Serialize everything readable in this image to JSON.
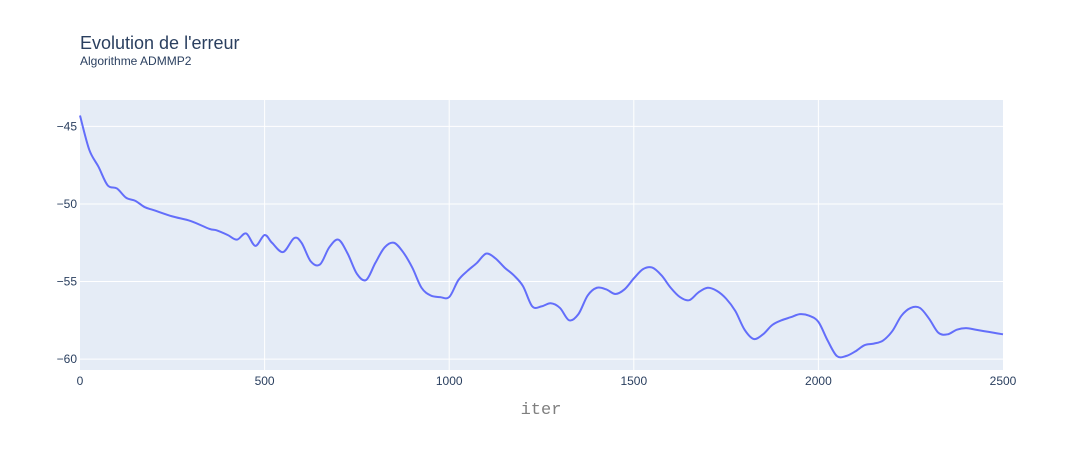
{
  "chart_data": {
    "type": "line",
    "title": "Evolution de l'erreur",
    "subtitle": "Algorithme ADMMP2",
    "xlabel": "iter",
    "ylabel": "",
    "xlim": [
      0,
      2500
    ],
    "ylim": [
      -60.7,
      -43.3
    ],
    "x_ticks": [
      0,
      500,
      1000,
      1500,
      2000,
      2500
    ],
    "x_tick_labels": [
      "0",
      "500",
      "1000",
      "1500",
      "2000",
      "2500"
    ],
    "y_ticks": [
      -45,
      -50,
      -55,
      -60
    ],
    "y_tick_labels": [
      "−45",
      "−50",
      "−55",
      "−60"
    ],
    "grid": true,
    "colors": {
      "line": "#636efa",
      "plot_bg": "#e5ecf6",
      "grid": "#ffffff",
      "text": "#2a3f5f"
    },
    "series": [
      {
        "x": [
          0,
          25,
          50,
          75,
          100,
          125,
          150,
          175,
          200,
          250,
          300,
          350,
          370,
          400,
          425,
          450,
          475,
          500,
          520,
          550,
          580,
          600,
          625,
          650,
          675,
          700,
          725,
          750,
          775,
          800,
          825,
          850,
          875,
          900,
          925,
          950,
          975,
          1000,
          1025,
          1050,
          1075,
          1100,
          1125,
          1150,
          1175,
          1200,
          1225,
          1250,
          1275,
          1300,
          1325,
          1350,
          1375,
          1400,
          1425,
          1450,
          1475,
          1500,
          1525,
          1550,
          1575,
          1600,
          1625,
          1650,
          1675,
          1700,
          1725,
          1750,
          1775,
          1800,
          1825,
          1850,
          1875,
          1900,
          1925,
          1950,
          1975,
          2000,
          2025,
          2050,
          2075,
          2100,
          2125,
          2150,
          2175,
          2200,
          2225,
          2250,
          2275,
          2300,
          2325,
          2350,
          2375,
          2400,
          2425,
          2450,
          2475,
          2500
        ],
        "y": [
          -44.3,
          -46.5,
          -47.6,
          -48.8,
          -49.0,
          -49.6,
          -49.8,
          -50.2,
          -50.4,
          -50.8,
          -51.1,
          -51.6,
          -51.7,
          -52.0,
          -52.3,
          -51.9,
          -52.7,
          -52.0,
          -52.5,
          -53.1,
          -52.2,
          -52.5,
          -53.7,
          -53.9,
          -52.8,
          -52.3,
          -53.2,
          -54.5,
          -54.9,
          -53.8,
          -52.8,
          -52.5,
          -53.1,
          -54.1,
          -55.4,
          -55.9,
          -56.0,
          -56.0,
          -54.9,
          -54.3,
          -53.8,
          -53.2,
          -53.5,
          -54.1,
          -54.6,
          -55.3,
          -56.6,
          -56.6,
          -56.4,
          -56.7,
          -57.5,
          -57.1,
          -55.9,
          -55.4,
          -55.5,
          -55.8,
          -55.5,
          -54.8,
          -54.2,
          -54.1,
          -54.6,
          -55.4,
          -56.0,
          -56.2,
          -55.7,
          -55.4,
          -55.6,
          -56.1,
          -56.9,
          -58.1,
          -58.7,
          -58.4,
          -57.8,
          -57.5,
          -57.3,
          -57.1,
          -57.2,
          -57.6,
          -58.8,
          -59.8,
          -59.8,
          -59.5,
          -59.1,
          -59.0,
          -58.8,
          -58.2,
          -57.2,
          -56.7,
          -56.7,
          -57.4,
          -58.3,
          -58.4,
          -58.1,
          -58.0,
          -58.1,
          -58.2,
          -58.3,
          -58.4
        ]
      }
    ]
  }
}
